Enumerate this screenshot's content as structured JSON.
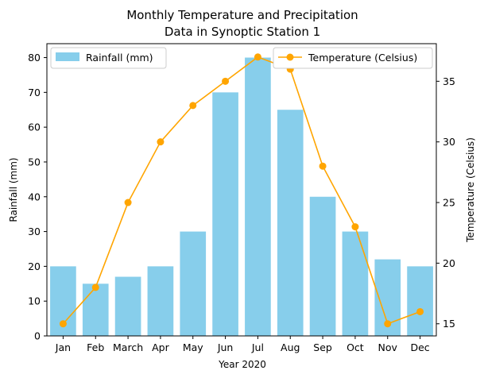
{
  "chart_data": {
    "type": "bar+line",
    "title_line1": "Monthly Temperature and Precipitation",
    "title_line2": "Data in Synoptic Station 1",
    "xlabel": "Year 2020",
    "categories": [
      "Jan",
      "Feb",
      "March",
      "Apr",
      "May",
      "Jun",
      "Jul",
      "Aug",
      "Sep",
      "Oct",
      "Nov",
      "Dec"
    ],
    "bar_series": {
      "name": "Rainfall (mm)",
      "color": "#87CEEB",
      "axis": "left",
      "values": [
        20,
        15,
        17,
        20,
        30,
        70,
        80,
        65,
        40,
        30,
        22,
        20
      ]
    },
    "line_series": {
      "name": "Temperature (Celsius)",
      "color": "#FFA500",
      "axis": "right",
      "marker": "circle",
      "values": [
        15,
        18,
        25,
        30,
        33,
        35,
        37,
        36,
        28,
        23,
        15,
        16
      ]
    },
    "left_axis": {
      "label": "Rainfall (mm)",
      "ylim": [
        0,
        84
      ],
      "ticks": [
        "0",
        "10",
        "20",
        "30",
        "40",
        "50",
        "60",
        "70",
        "80"
      ]
    },
    "right_axis": {
      "label": "Temperature (Celsius)",
      "ylim": [
        14.0,
        38.1
      ],
      "ticks": [
        "15",
        "20",
        "25",
        "30",
        "35"
      ]
    },
    "legends": [
      {
        "series": "bar",
        "placement": "upper-left"
      },
      {
        "series": "line",
        "placement": "upper-right"
      }
    ],
    "grid": false
  }
}
